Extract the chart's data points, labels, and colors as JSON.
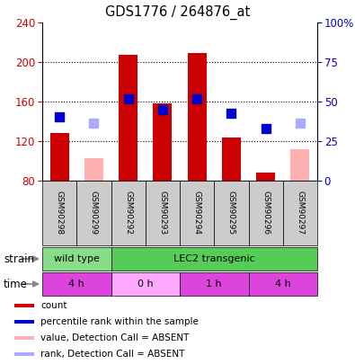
{
  "title": "GDS1776 / 264876_at",
  "samples": [
    "GSM90298",
    "GSM90299",
    "GSM90292",
    "GSM90293",
    "GSM90294",
    "GSM90295",
    "GSM90296",
    "GSM90297"
  ],
  "counts": [
    128,
    null,
    207,
    158,
    209,
    124,
    88,
    null
  ],
  "counts_absent": [
    null,
    103,
    null,
    null,
    null,
    null,
    null,
    112
  ],
  "rank_values": [
    145,
    null,
    163,
    152,
    163,
    148,
    133,
    null
  ],
  "rank_absent": [
    null,
    138,
    null,
    null,
    null,
    null,
    null,
    138
  ],
  "ylim_left": [
    80,
    240
  ],
  "ylim_right": [
    0,
    100
  ],
  "yticks_left": [
    80,
    120,
    160,
    200,
    240
  ],
  "yticks_right": [
    0,
    25,
    50,
    75,
    100
  ],
  "ytick_labels_right": [
    "0",
    "25",
    "50",
    "75",
    "100%"
  ],
  "bar_color_present": "#cc0000",
  "bar_color_absent": "#ffb0b0",
  "rank_color_present": "#0000cc",
  "rank_color_absent": "#aaaaff",
  "strain_groups": [
    {
      "label": "wild type",
      "start": 0,
      "end": 2,
      "color": "#88dd88"
    },
    {
      "label": "LEC2 transgenic",
      "start": 2,
      "end": 8,
      "color": "#55cc55"
    }
  ],
  "time_groups": [
    {
      "label": "4 h",
      "start": 0,
      "end": 2,
      "color": "#dd44dd"
    },
    {
      "label": "0 h",
      "start": 2,
      "end": 4,
      "color": "#ffaaff"
    },
    {
      "label": "1 h",
      "start": 4,
      "end": 6,
      "color": "#dd44dd"
    },
    {
      "label": "4 h",
      "start": 6,
      "end": 8,
      "color": "#dd44dd"
    }
  ],
  "legend_items": [
    {
      "label": "count",
      "color": "#cc0000"
    },
    {
      "label": "percentile rank within the sample",
      "color": "#0000cc"
    },
    {
      "label": "value, Detection Call = ABSENT",
      "color": "#ffb0b0"
    },
    {
      "label": "rank, Detection Call = ABSENT",
      "color": "#aaaaff"
    }
  ],
  "xlabel_strain": "strain",
  "xlabel_time": "time",
  "bar_width": 0.55,
  "rank_marker_size": 7,
  "bg_color": "#ffffff",
  "plot_bg": "#ffffff",
  "axis_color_left": "#cc0000",
  "axis_color_right": "#0000cc",
  "sample_bg_color": "#cccccc",
  "grid_yticks": [
    120,
    160,
    200
  ]
}
